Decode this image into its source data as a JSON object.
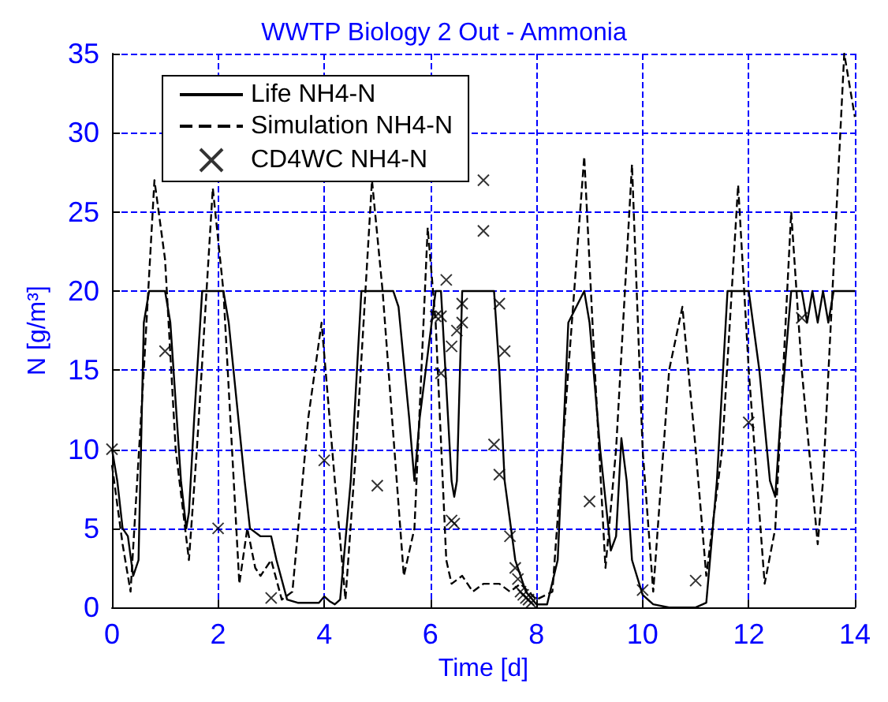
{
  "chart_data": {
    "type": "line",
    "title": "WWTP Biology 2 Out - Ammonia",
    "xlabel": "Time [d]",
    "ylabel": "N [g/m³]",
    "xlim": [
      0,
      14
    ],
    "xticks": [
      0,
      2,
      4,
      6,
      8,
      10,
      12,
      14
    ],
    "ylim": [
      0,
      35
    ],
    "yticks": [
      0,
      5,
      10,
      15,
      20,
      25,
      30,
      35
    ],
    "grid": true,
    "legend": "top left",
    "series": [
      {
        "name": "Life NH4-N",
        "color": "#000000",
        "line_style": "solid",
        "marker": "none",
        "x": [
          0,
          0.1,
          0.2,
          0.3,
          0.4,
          0.5,
          0.6,
          0.7,
          1.0,
          1.1,
          1.3,
          1.4,
          1.45,
          1.55,
          1.7,
          2.1,
          2.2,
          2.5,
          2.6,
          2.8,
          3.0,
          3.1,
          3.3,
          3.5,
          3.9,
          4.0,
          4.1,
          4.2,
          4.3,
          4.5,
          4.7,
          5.3,
          5.4,
          5.6,
          5.7,
          5.8,
          6.1,
          6.2,
          6.3,
          6.4,
          6.45,
          6.5,
          6.6,
          7.2,
          7.3,
          7.4,
          7.6,
          7.8,
          8.0,
          8.2,
          8.4,
          8.6,
          8.9,
          9.0,
          9.2,
          9.4,
          9.5,
          9.6,
          9.7,
          9.8,
          10.0,
          10.2,
          10.5,
          11.0,
          11.2,
          11.4,
          11.6,
          12.0,
          12.2,
          12.4,
          12.5,
          12.6,
          12.8,
          13.0,
          13.1,
          13.2,
          13.3,
          13.4,
          13.5,
          13.6,
          14
        ],
        "values": [
          10,
          8,
          5,
          4.5,
          2,
          3,
          18,
          20,
          20,
          18,
          8,
          5,
          6,
          12,
          20,
          20,
          18,
          8,
          5,
          4.5,
          4.5,
          3,
          0.5,
          0.3,
          0.3,
          0.7,
          0.4,
          0.2,
          0.5,
          8,
          20,
          20,
          19,
          12,
          8,
          12,
          20,
          20,
          14,
          8,
          7,
          8,
          20,
          20,
          15,
          8,
          3,
          1,
          0.2,
          0.2,
          3,
          18,
          20,
          18,
          10,
          3.6,
          4.5,
          10.7,
          8,
          3,
          0.8,
          0.2,
          0,
          0,
          0.3,
          8,
          20,
          20,
          15,
          8,
          7,
          12,
          20,
          20,
          18,
          20,
          18,
          20,
          18,
          20,
          20
        ]
      },
      {
        "name": "Simulation NH4-N",
        "color": "#000000",
        "line_style": "dashed",
        "marker": "none",
        "x": [
          0,
          0.2,
          0.35,
          0.6,
          0.8,
          1.0,
          1.2,
          1.45,
          1.6,
          1.9,
          2.1,
          2.4,
          2.55,
          2.7,
          2.8,
          3.0,
          3.2,
          3.4,
          3.7,
          3.95,
          4.2,
          4.4,
          4.6,
          4.9,
          5.1,
          5.5,
          5.7,
          5.95,
          6.1,
          6.3,
          6.4,
          6.6,
          6.8,
          7.0,
          7.3,
          7.5,
          7.7,
          8.0,
          8.3,
          8.6,
          8.9,
          9.1,
          9.3,
          9.5,
          9.8,
          10.0,
          10.2,
          10.5,
          10.75,
          11.0,
          11.2,
          11.5,
          11.8,
          12.0,
          12.3,
          12.5,
          12.8,
          13.0,
          13.3,
          13.4,
          13.8,
          14
        ],
        "values": [
          9,
          4,
          1,
          15,
          27,
          22,
          10,
          3,
          10,
          26.5,
          20,
          1.5,
          5,
          2.5,
          2,
          3,
          0.5,
          1,
          12,
          18,
          8,
          0.5,
          10,
          27,
          20,
          2,
          5,
          24,
          18,
          3,
          1.5,
          2,
          1,
          1.5,
          1.5,
          1,
          1.5,
          0.5,
          1,
          15,
          28.5,
          15,
          2.5,
          10,
          28,
          10,
          1,
          15,
          19,
          10,
          2,
          10,
          26.7,
          15,
          1.5,
          5,
          25,
          15,
          4,
          8,
          35,
          31
        ]
      },
      {
        "name": "CD4WC NH4-N",
        "type": "scatter",
        "color": "#000000",
        "marker": "cross",
        "x": [
          0,
          1,
          2,
          3,
          4,
          5,
          6.1,
          6.2,
          6.2,
          6.3,
          6.4,
          6.4,
          6.45,
          6.5,
          6.6,
          6.6,
          7.0,
          7.0,
          7.2,
          7.3,
          7.3,
          7.4,
          7.5,
          7.6,
          7.65,
          7.7,
          7.75,
          7.8,
          7.85,
          7.9,
          7.95,
          9,
          10,
          11,
          12,
          13
        ],
        "values": [
          10,
          16.2,
          5,
          0.6,
          9.3,
          7.7,
          18.4,
          18.4,
          14.8,
          20.7,
          16.5,
          5.5,
          5.3,
          17.5,
          19.2,
          18,
          27,
          23.8,
          10.3,
          19.2,
          8.4,
          16.2,
          4.5,
          2.5,
          1.8,
          1,
          0.8,
          0.6,
          0.5,
          0.3,
          null,
          6.7,
          1.1,
          1.7,
          11.7,
          18.3
        ]
      }
    ]
  }
}
